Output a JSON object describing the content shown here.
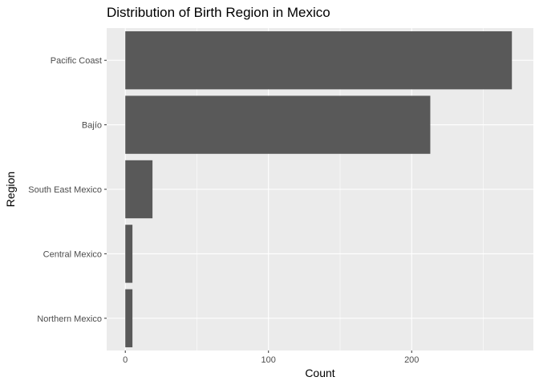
{
  "chart_data": {
    "type": "bar",
    "orientation": "horizontal",
    "title": "Distribution of Birth Region in Mexico",
    "xlabel": "Count",
    "ylabel": "Region",
    "categories": [
      "Pacific Coast",
      "Bajío",
      "South East Mexico",
      "Central Mexico",
      "Northern Mexico"
    ],
    "values": [
      270,
      213,
      19,
      5,
      5
    ],
    "xlim": [
      -13,
      285
    ],
    "x_ticks": [
      "0",
      "100",
      "200"
    ],
    "grid": true,
    "legend": "none",
    "colors": {
      "bar": "#595959",
      "panel": "#ebebeb",
      "grid_major": "#ffffff",
      "tick_text": "#4d4d4d"
    }
  }
}
